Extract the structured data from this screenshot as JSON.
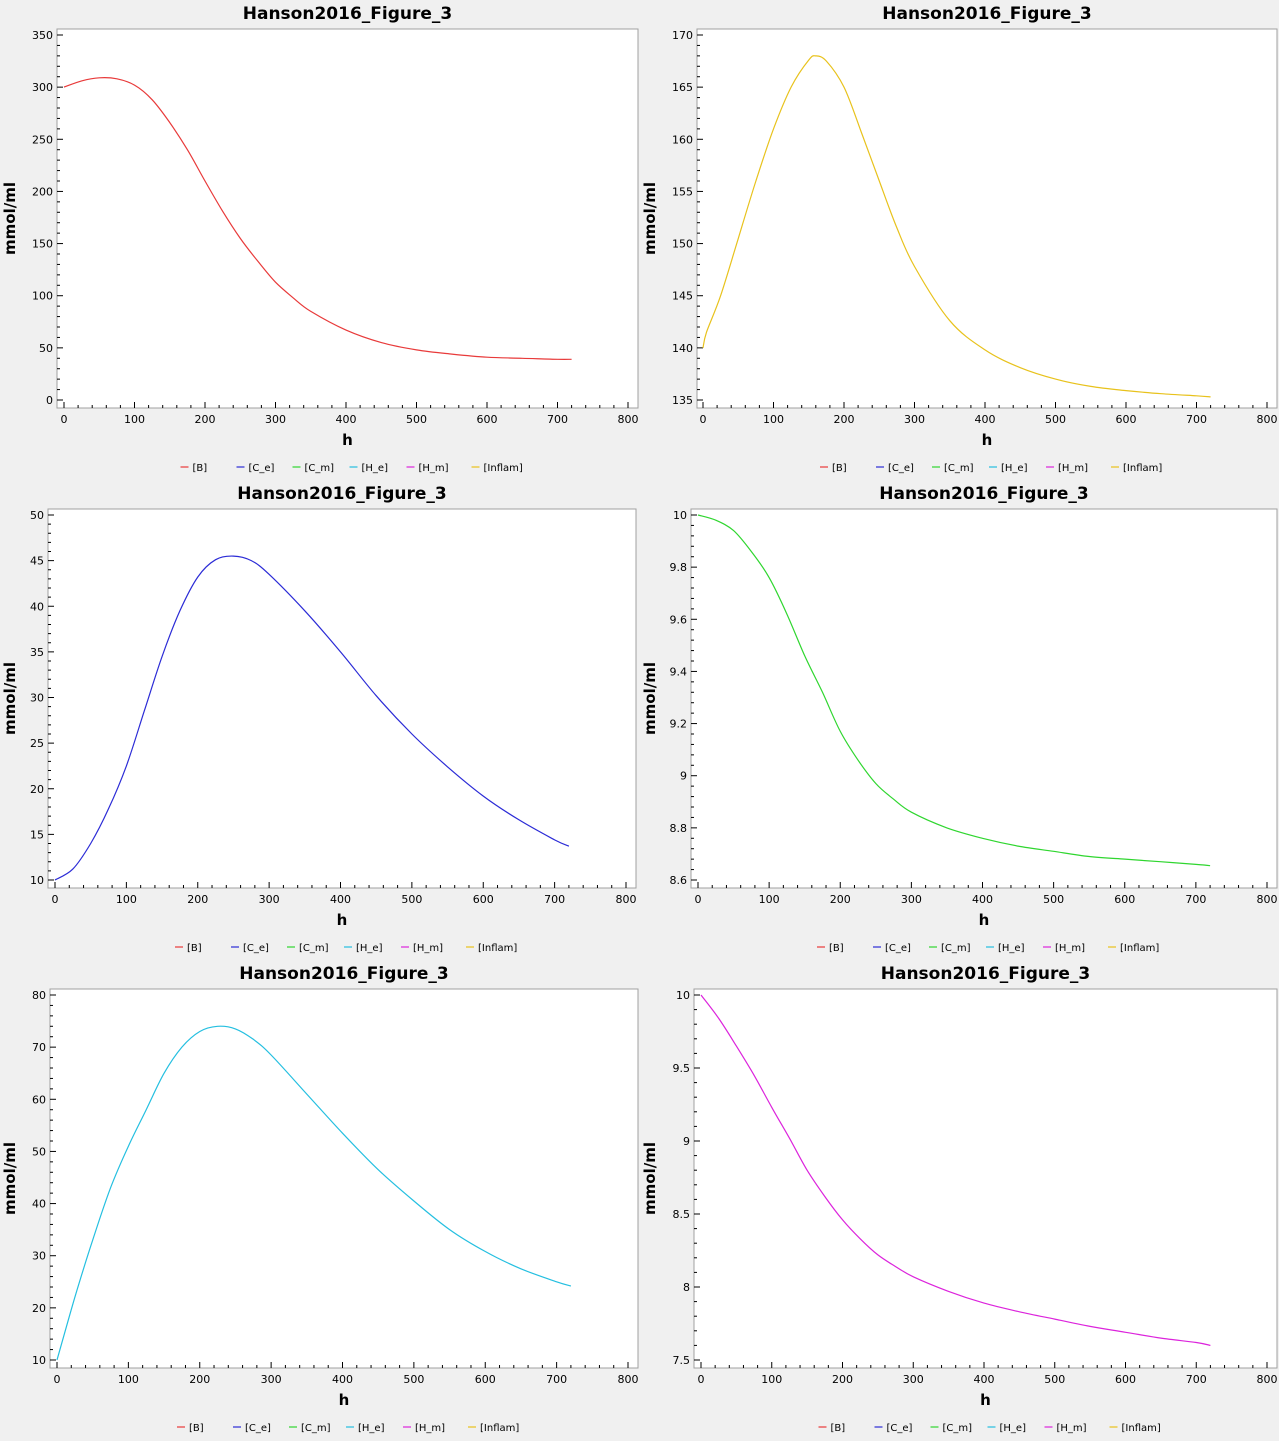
{
  "colors": {
    "[B]": "#e83a3a",
    "[C_e]": "#2b2bd6",
    "[C_m]": "#2fd62f",
    "[H_e]": "#24bfe0",
    "[H_m]": "#dc24dc",
    "[Inflam]": "#e8c21c"
  },
  "chart_data": [
    {
      "type": "line",
      "title": "Hanson2016_Figure_3",
      "xlabel": "h",
      "ylabel": "mmol/ml",
      "xlim": [
        0,
        800
      ],
      "ylim": [
        0,
        350
      ],
      "xticks": [
        0,
        100,
        200,
        300,
        400,
        500,
        600,
        700,
        800
      ],
      "yticks": [
        0,
        50,
        100,
        150,
        200,
        250,
        300,
        350
      ],
      "legend": [
        "[B]",
        "[C_e]",
        "[C_m]",
        "[H_e]",
        "[H_m]",
        "[Inflam]"
      ],
      "series": [
        {
          "name": "[B]",
          "x": [
            0,
            25,
            50,
            75,
            100,
            125,
            150,
            175,
            200,
            225,
            250,
            275,
            300,
            325,
            350,
            400,
            450,
            500,
            550,
            600,
            650,
            700,
            720
          ],
          "y": [
            300,
            306,
            309,
            308,
            302,
            288,
            266,
            240,
            210,
            181,
            155,
            133,
            113,
            98,
            85,
            67,
            55,
            48,
            44,
            41,
            40,
            39,
            39
          ]
        }
      ]
    },
    {
      "type": "line",
      "title": "Hanson2016_Figure_3",
      "xlabel": "h",
      "ylabel": "mmol/ml",
      "xlim": [
        0,
        800
      ],
      "ylim": [
        135,
        170
      ],
      "xticks": [
        0,
        100,
        200,
        300,
        400,
        500,
        600,
        700,
        800
      ],
      "yticks": [
        135,
        140,
        145,
        150,
        155,
        160,
        165,
        170
      ],
      "legend": [
        "[B]",
        "[C_e]",
        "[C_m]",
        "[H_e]",
        "[H_m]",
        "[Inflam]"
      ],
      "series": [
        {
          "name": "[Inflam]",
          "x": [
            0,
            5,
            25,
            50,
            75,
            100,
            125,
            150,
            160,
            175,
            200,
            225,
            250,
            275,
            300,
            350,
            400,
            450,
            500,
            550,
            600,
            650,
            700,
            720
          ],
          "y": [
            140,
            141.5,
            145,
            150.5,
            156,
            161,
            165,
            167.6,
            168,
            167.5,
            165,
            160.6,
            156,
            151.5,
            147.8,
            142.6,
            139.8,
            138.1,
            137,
            136.3,
            135.9,
            135.6,
            135.4,
            135.3
          ]
        }
      ]
    },
    {
      "type": "line",
      "title": "Hanson2016_Figure_3",
      "xlabel": "h",
      "ylabel": "mmol/ml",
      "xlim": [
        0,
        800
      ],
      "ylim": [
        10,
        50
      ],
      "xticks": [
        0,
        100,
        200,
        300,
        400,
        500,
        600,
        700,
        800
      ],
      "yticks": [
        10,
        15,
        20,
        25,
        30,
        35,
        40,
        45,
        50
      ],
      "legend": [
        "[B]",
        "[C_e]",
        "[C_m]",
        "[H_e]",
        "[H_m]",
        "[Inflam]"
      ],
      "series": [
        {
          "name": "[C_e]",
          "x": [
            0,
            25,
            50,
            75,
            100,
            125,
            150,
            175,
            200,
            225,
            250,
            275,
            300,
            350,
            400,
            450,
            500,
            550,
            600,
            650,
            700,
            720
          ],
          "y": [
            10,
            11.2,
            14,
            17.8,
            22.5,
            28.5,
            34.5,
            39.5,
            43.2,
            45.1,
            45.5,
            45,
            43.5,
            39.5,
            35,
            30.2,
            26,
            22.4,
            19.2,
            16.6,
            14.4,
            13.7
          ]
        }
      ]
    },
    {
      "type": "line",
      "title": "Hanson2016_Figure_3",
      "xlabel": "h",
      "ylabel": "mmol/ml",
      "xlim": [
        0,
        800
      ],
      "ylim": [
        8.6,
        10
      ],
      "xticks": [
        0,
        100,
        200,
        300,
        400,
        500,
        600,
        700,
        800
      ],
      "yticks": [
        8.6,
        8.8,
        9,
        9.2,
        9.4,
        9.6,
        9.8,
        10
      ],
      "ytick_labels": [
        "8.6",
        "8.8",
        "9",
        "9.2",
        "9.4",
        "9.6",
        "9.8",
        "10"
      ],
      "legend": [
        "[B]",
        "[C_e]",
        "[C_m]",
        "[H_e]",
        "[H_m]",
        "[Inflam]"
      ],
      "series": [
        {
          "name": "[C_m]",
          "x": [
            0,
            25,
            50,
            75,
            100,
            125,
            150,
            175,
            200,
            225,
            250,
            275,
            300,
            350,
            400,
            450,
            500,
            550,
            600,
            650,
            700,
            720
          ],
          "y": [
            10,
            9.98,
            9.94,
            9.86,
            9.76,
            9.62,
            9.46,
            9.32,
            9.17,
            9.06,
            8.97,
            8.91,
            8.86,
            8.8,
            8.76,
            8.73,
            8.71,
            8.69,
            8.68,
            8.67,
            8.66,
            8.655
          ]
        }
      ]
    },
    {
      "type": "line",
      "title": "Hanson2016_Figure_3",
      "xlabel": "h",
      "ylabel": "mmol/ml",
      "xlim": [
        0,
        800
      ],
      "ylim": [
        10,
        80
      ],
      "xticks": [
        0,
        100,
        200,
        300,
        400,
        500,
        600,
        700,
        800
      ],
      "yticks": [
        10,
        20,
        30,
        40,
        50,
        60,
        70,
        80
      ],
      "legend": [
        "[B]",
        "[C_e]",
        "[C_m]",
        "[H_e]",
        "[H_m]",
        "[Inflam]"
      ],
      "series": [
        {
          "name": "[H_e]",
          "x": [
            0,
            25,
            50,
            75,
            100,
            125,
            150,
            175,
            200,
            225,
            250,
            275,
            300,
            350,
            400,
            450,
            500,
            550,
            600,
            650,
            700,
            720
          ],
          "y": [
            10,
            22,
            33,
            43,
            51,
            58,
            65,
            70,
            73,
            74,
            73.5,
            71.5,
            68.5,
            61,
            53.5,
            46.5,
            40.5,
            35,
            30.8,
            27.5,
            25,
            24.2
          ]
        }
      ]
    },
    {
      "type": "line",
      "title": "Hanson2016_Figure_3",
      "xlabel": "h",
      "ylabel": "mmol/ml",
      "xlim": [
        0,
        800
      ],
      "ylim": [
        7.5,
        10
      ],
      "xticks": [
        0,
        100,
        200,
        300,
        400,
        500,
        600,
        700,
        800
      ],
      "yticks": [
        7.5,
        8,
        8.5,
        9,
        9.5,
        10
      ],
      "ytick_labels": [
        "7.5",
        "8",
        "8.5",
        "9",
        "9.5",
        "10"
      ],
      "legend": [
        "[B]",
        "[C_e]",
        "[C_m]",
        "[H_e]",
        "[H_m]",
        "[Inflam]"
      ],
      "series": [
        {
          "name": "[H_m]",
          "x": [
            0,
            25,
            50,
            75,
            100,
            125,
            150,
            175,
            200,
            225,
            250,
            275,
            300,
            350,
            400,
            450,
            500,
            550,
            600,
            650,
            700,
            720
          ],
          "y": [
            10,
            9.84,
            9.65,
            9.45,
            9.23,
            9.02,
            8.8,
            8.62,
            8.46,
            8.33,
            8.22,
            8.14,
            8.07,
            7.97,
            7.89,
            7.83,
            7.78,
            7.73,
            7.69,
            7.65,
            7.62,
            7.6
          ]
        }
      ]
    }
  ]
}
